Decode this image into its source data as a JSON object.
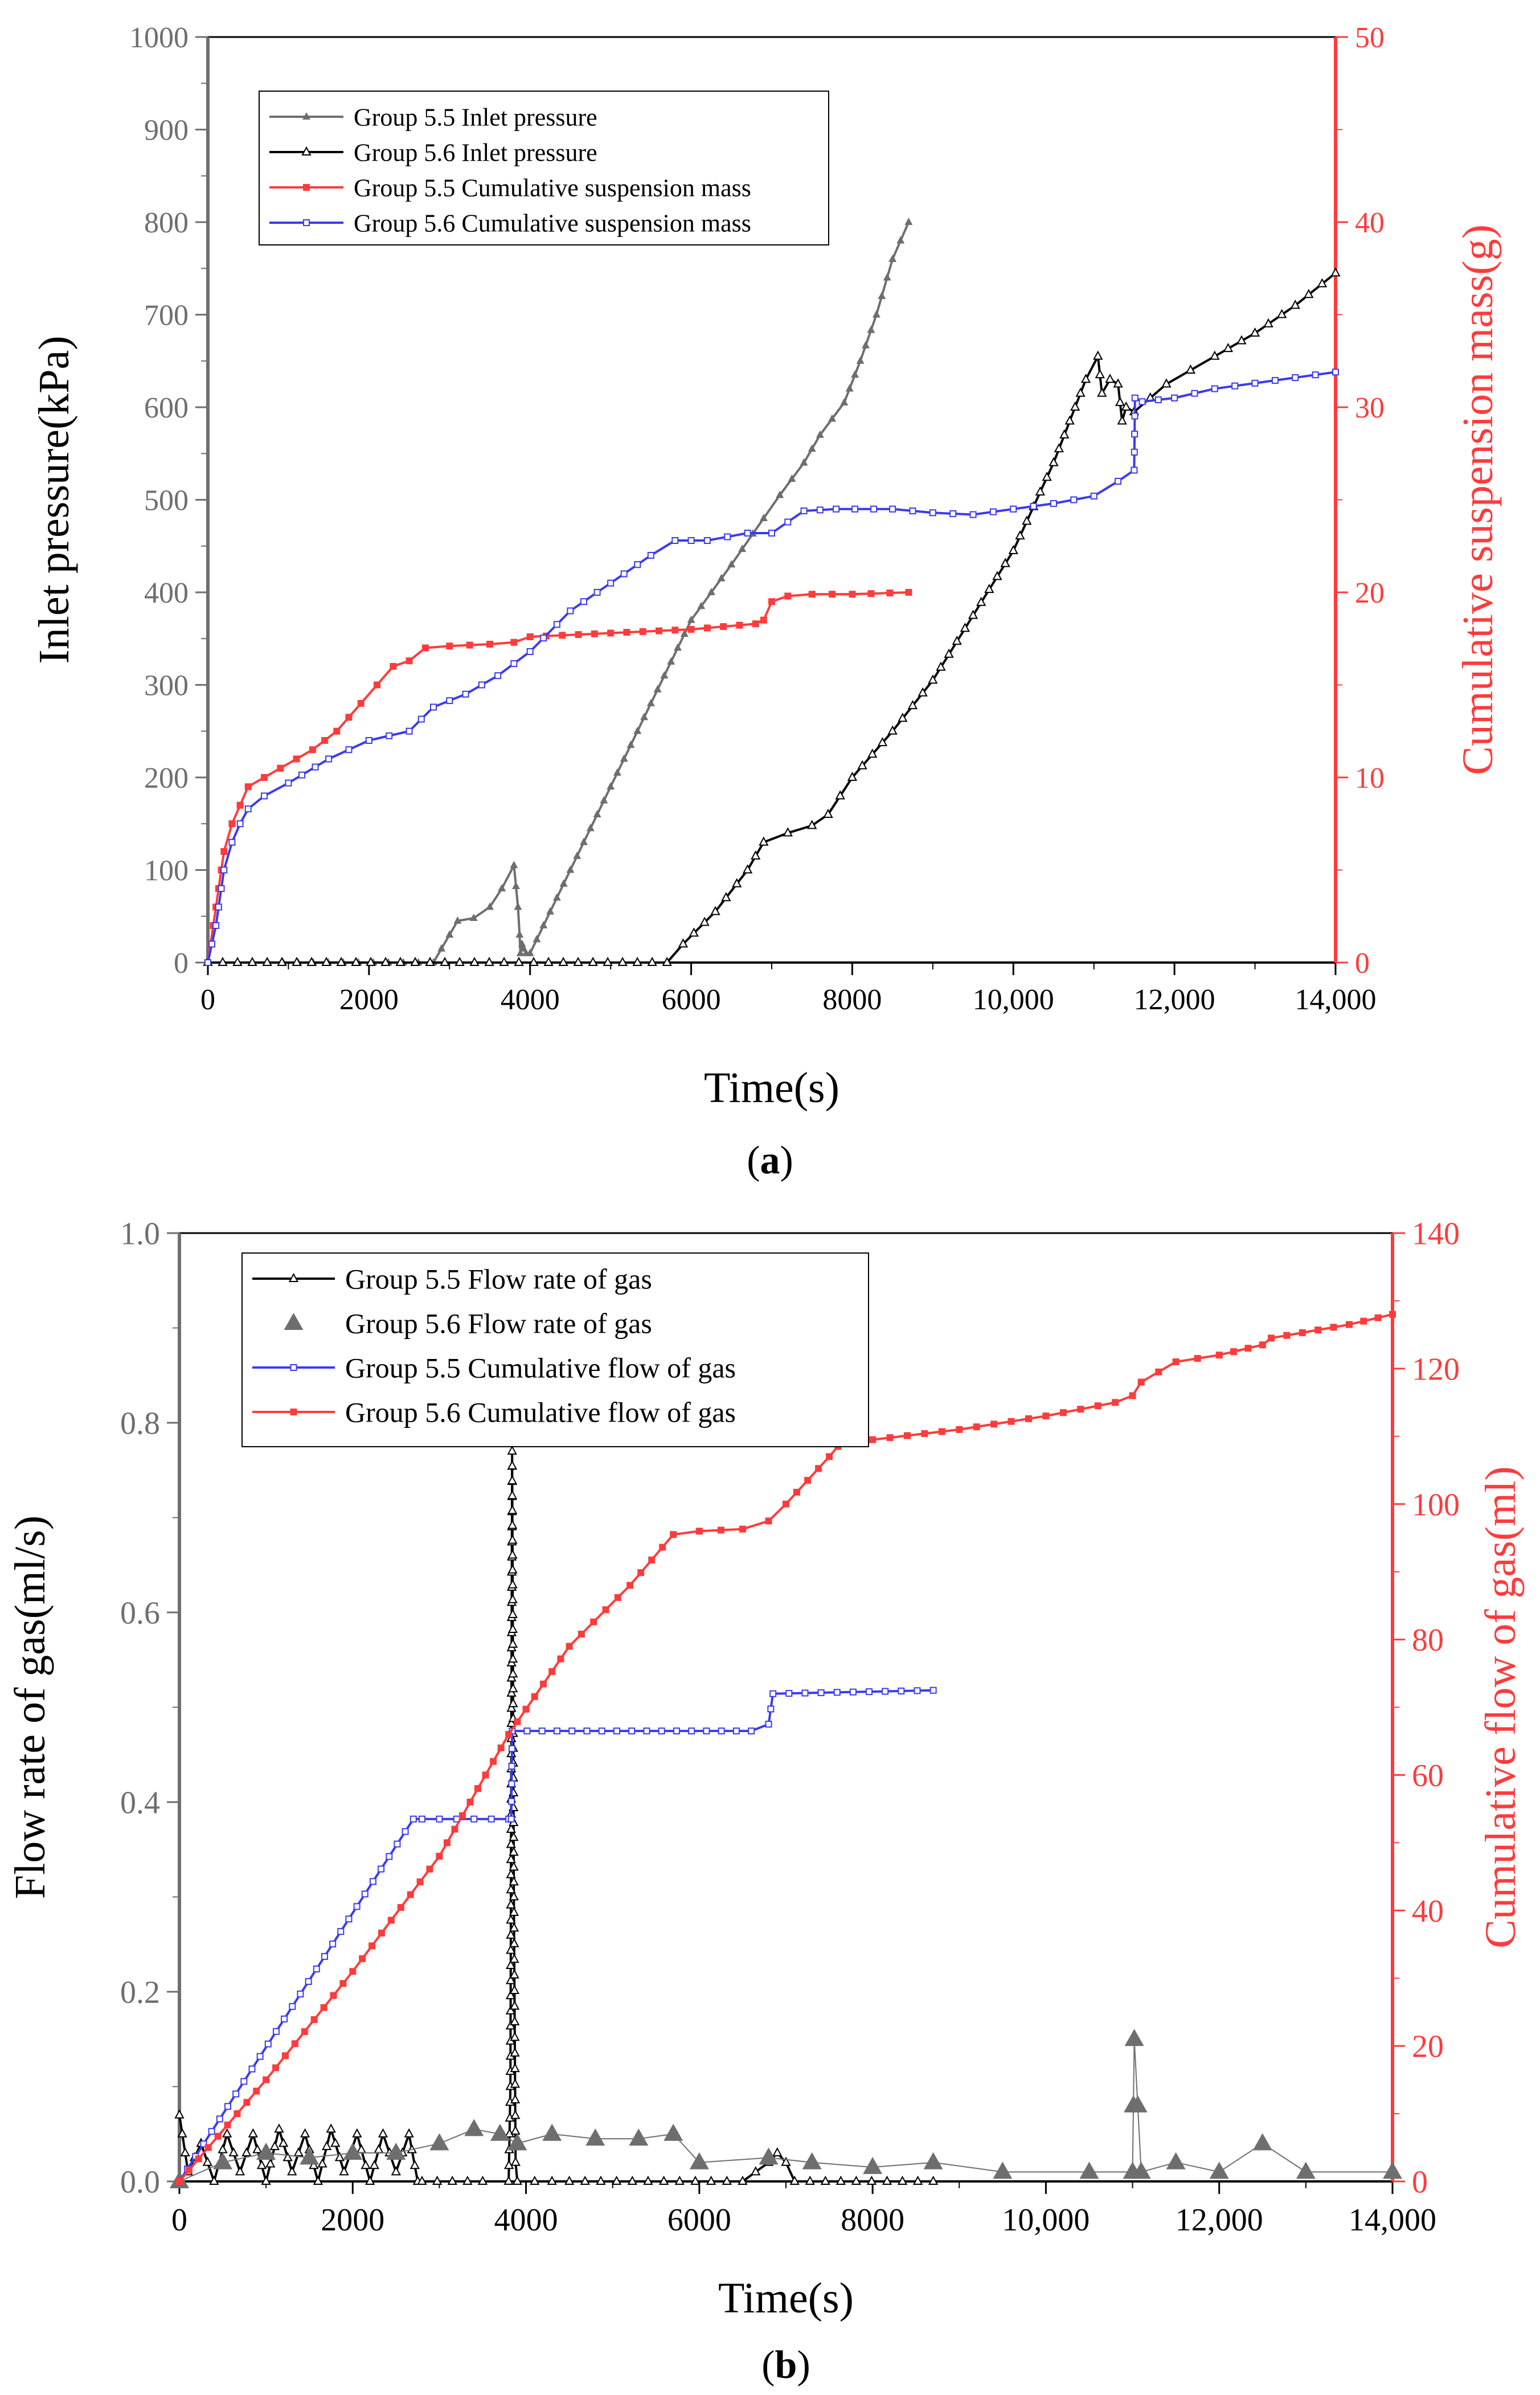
{
  "colors": {
    "gray": "#6e6e6e",
    "black": "#000000",
    "red": "#ff3b3b",
    "blue": "#3a3aee"
  },
  "chart_data": [
    {
      "id": "a",
      "type": "line",
      "caption_open": "(",
      "caption_letter": "a",
      "caption_close": ")",
      "xlabel": "Time(s)",
      "ylabel_left": "Inlet pressure(kPa)",
      "ylabel_right": "Cumulative suspension mass(g)",
      "xlim": [
        0,
        14000
      ],
      "ylim_left": [
        0,
        1000
      ],
      "ylim_right": [
        0,
        50
      ],
      "x_ticks": [
        0,
        2000,
        4000,
        6000,
        8000,
        10000,
        12000,
        14000
      ],
      "x_tick_labels": [
        "0",
        "2000",
        "4000",
        "6000",
        "8000",
        "10,000",
        "12,000",
        "14,000"
      ],
      "y_left_ticks": [
        0,
        100,
        200,
        300,
        400,
        500,
        600,
        700,
        800,
        900,
        1000
      ],
      "y_left_tick_labels": [
        "0",
        "100",
        "200",
        "300",
        "400",
        "500",
        "600",
        "700",
        "800",
        "900",
        "1000"
      ],
      "y_right_ticks": [
        0,
        10,
        20,
        30,
        40,
        50
      ],
      "y_right_tick_labels": [
        "0",
        "10",
        "20",
        "30",
        "40",
        "50"
      ],
      "legend_position": "top-left",
      "series": [
        {
          "name": "Group 5.5 Inlet pressure",
          "axis": "left",
          "color": "gray",
          "marker": "triangle-filled",
          "x": [
            0,
            2800,
            3100,
            3300,
            3500,
            3650,
            3800,
            3850,
            3870,
            3880,
            3900,
            3920,
            3950,
            4000,
            4500,
            5000,
            5500,
            6000,
            6500,
            6900,
            7100,
            7400,
            7600,
            7900,
            8100,
            8300,
            8500,
            8700
          ],
          "y": [
            0,
            0,
            45,
            48,
            60,
            80,
            105,
            60,
            30,
            10,
            20,
            15,
            10,
            10,
            100,
            190,
            280,
            370,
            430,
            480,
            505,
            540,
            570,
            605,
            650,
            700,
            760,
            800
          ]
        },
        {
          "name": "Group 5.6 Inlet pressure",
          "axis": "left",
          "color": "black",
          "marker": "triangle-open",
          "x": [
            0,
            5700,
            5900,
            6300,
            6700,
            6900,
            7200,
            7500,
            7700,
            8000,
            8500,
            9000,
            9500,
            10000,
            10500,
            10900,
            11050,
            11100,
            11200,
            11300,
            11350,
            11400,
            11500,
            11700,
            11900,
            12200,
            12500,
            13000,
            13500,
            14000
          ],
          "y": [
            0,
            0,
            20,
            55,
            100,
            130,
            140,
            148,
            160,
            200,
            250,
            305,
            375,
            445,
            540,
            630,
            655,
            615,
            630,
            625,
            585,
            600,
            595,
            610,
            625,
            640,
            655,
            680,
            710,
            745
          ]
        },
        {
          "name": "Group 5.5 Cumulative suspension mass",
          "axis": "right",
          "color": "red",
          "marker": "square-filled",
          "x": [
            0,
            100,
            200,
            300,
            400,
            500,
            700,
            900,
            1100,
            1300,
            1600,
            1900,
            2100,
            2300,
            2500,
            2700,
            3000,
            3500,
            3800,
            4000,
            5000,
            6000,
            6800,
            6900,
            7000,
            7200,
            7500,
            8000,
            8700
          ],
          "y": [
            0,
            3,
            6,
            7.5,
            8.5,
            9.5,
            10,
            10.5,
            11,
            11.5,
            12.5,
            14,
            15,
            16,
            16.3,
            17,
            17.1,
            17.2,
            17.3,
            17.6,
            17.8,
            18,
            18.3,
            18.5,
            19.5,
            19.8,
            19.9,
            19.9,
            20
          ]
        },
        {
          "name": "Group 5.6 Cumulative suspension mass",
          "axis": "right",
          "color": "blue",
          "marker": "square-open",
          "x": [
            0,
            100,
            200,
            300,
            400,
            500,
            700,
            1000,
            1500,
            2000,
            2500,
            2800,
            3200,
            3600,
            4000,
            4500,
            5000,
            5500,
            5800,
            6200,
            6700,
            7000,
            7400,
            7800,
            8500,
            9000,
            9500,
            10000,
            10500,
            11000,
            11300,
            11500,
            11510,
            11600,
            12000,
            12500,
            13000,
            13500,
            14000
          ],
          "y": [
            0,
            2,
            5,
            6.5,
            7.5,
            8.3,
            9,
            9.7,
            11,
            12,
            12.5,
            13.8,
            14.5,
            15.5,
            16.8,
            19,
            20.5,
            22,
            22.8,
            22.8,
            23.2,
            23.2,
            24.4,
            24.5,
            24.5,
            24.3,
            24.2,
            24.5,
            24.8,
            25.2,
            26,
            26.6,
            30.5,
            30.3,
            30.5,
            31,
            31.3,
            31.6,
            31.9
          ]
        }
      ]
    },
    {
      "id": "b",
      "type": "line",
      "caption_open": "(",
      "caption_letter": "b",
      "caption_close": ")",
      "xlabel": "Time(s)",
      "ylabel_left": "Flow rate of gas(ml/s)",
      "ylabel_right": "Cumulative flow of gas(ml)",
      "xlim": [
        0,
        14000
      ],
      "ylim_left": [
        0,
        1.0
      ],
      "ylim_right": [
        0,
        140
      ],
      "x_ticks": [
        0,
        2000,
        4000,
        6000,
        8000,
        10000,
        12000,
        14000
      ],
      "x_tick_labels": [
        "0",
        "2000",
        "4000",
        "6000",
        "8000",
        "10,000",
        "12,000",
        "14,000"
      ],
      "y_left_ticks": [
        0,
        0.2,
        0.4,
        0.6,
        0.8,
        1.0
      ],
      "y_left_tick_labels": [
        "0.0",
        "0.2",
        "0.4",
        "0.6",
        "0.8",
        "1.0"
      ],
      "y_right_ticks": [
        0,
        20,
        40,
        60,
        80,
        100,
        120,
        140
      ],
      "y_right_tick_labels": [
        "0",
        "20",
        "40",
        "60",
        "80",
        "100",
        "120",
        "140"
      ],
      "legend_position": "top-left",
      "series": [
        {
          "name": "Group 5.5 Flow rate of gas",
          "axis": "left",
          "color": "black",
          "marker": "triangle-open",
          "x": [
            0,
            100,
            250,
            400,
            550,
            700,
            850,
            1000,
            1150,
            1300,
            1450,
            1600,
            1750,
            1900,
            2050,
            2200,
            2350,
            2500,
            2650,
            2750,
            2800,
            3500,
            3800,
            3820,
            3840,
            3860,
            3880,
            3900,
            4500,
            6500,
            6800,
            6900,
            7000,
            7100,
            8700
          ],
          "y": [
            0.07,
            0.01,
            0.04,
            0.0,
            0.05,
            0.01,
            0.05,
            0.0,
            0.055,
            0.01,
            0.05,
            0.0,
            0.055,
            0.01,
            0.05,
            0.0,
            0.05,
            0.01,
            0.05,
            0.0,
            0.0,
            0.0,
            0.0,
            0.1,
            0.77,
            0.3,
            0.02,
            0.0,
            0.0,
            0.0,
            0.02,
            0.03,
            0.02,
            0.0,
            0.0
          ]
        },
        {
          "name": "Group 5.6 Flow rate of gas",
          "axis": "left",
          "color": "gray",
          "marker": "triangle-filled-large",
          "x": [
            0,
            500,
            1000,
            1500,
            2000,
            2500,
            3000,
            3400,
            3700,
            3900,
            4300,
            4800,
            5300,
            5700,
            6000,
            6800,
            7300,
            8000,
            8700,
            9500,
            10500,
            11000,
            11020,
            11100,
            11500,
            12000,
            12500,
            13000,
            14000
          ],
          "y": [
            0.0,
            0.02,
            0.03,
            0.025,
            0.03,
            0.03,
            0.04,
            0.055,
            0.05,
            0.04,
            0.05,
            0.045,
            0.045,
            0.05,
            0.02,
            0.025,
            0.02,
            0.015,
            0.02,
            0.01,
            0.01,
            0.01,
            0.15,
            0.01,
            0.02,
            0.01,
            0.04,
            0.01,
            0.01
          ]
        },
        {
          "name": "Group 5.5 Cumulative flow of gas",
          "axis": "right",
          "color": "blue",
          "marker": "square-open",
          "x": [
            0,
            2700,
            2800,
            3800,
            3830,
            3840,
            6600,
            6800,
            6850,
            8700
          ],
          "y": [
            0,
            53.5,
            53.5,
            53.5,
            53.5,
            66.5,
            66.5,
            67.5,
            72.0,
            72.5
          ]
        },
        {
          "name": "Group 5.6 Cumulative flow of gas",
          "axis": "right",
          "color": "red",
          "marker": "square-filled",
          "x": [
            0,
            1000,
            2000,
            3000,
            3800,
            4500,
            5200,
            5700,
            6000,
            6500,
            6800,
            7000,
            7500,
            7600,
            8000,
            9000,
            10000,
            10800,
            11000,
            11100,
            11500,
            12000,
            12500,
            12600,
            13500,
            14000
          ],
          "y": [
            0,
            15,
            31,
            48,
            66,
            79,
            88,
            95.5,
            96,
            96.3,
            97.5,
            100,
            107,
            108.5,
            109.5,
            111,
            113,
            115,
            116,
            118,
            121,
            122,
            123.5,
            124.5,
            126.5,
            128
          ]
        }
      ]
    }
  ]
}
